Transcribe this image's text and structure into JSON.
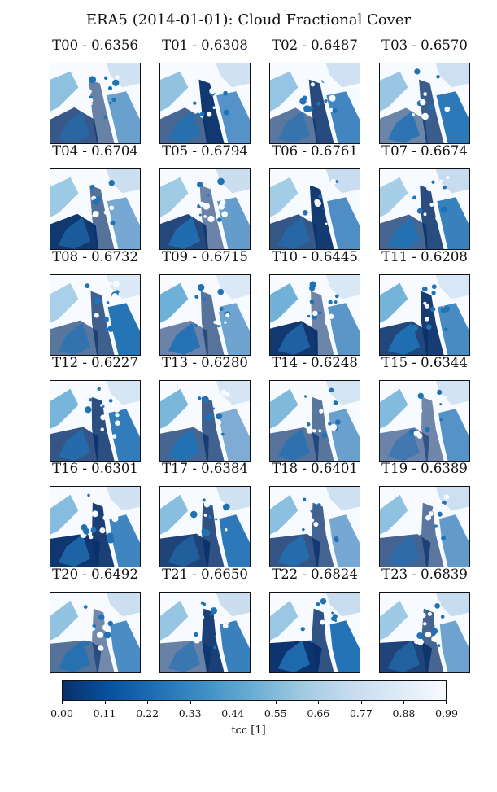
{
  "chart_data": {
    "type": "heatmap",
    "title": "ERA5 (2014-01-01): Cloud Fractional Cover",
    "colormap": "Blues_r",
    "panels": [
      {
        "label": "T00 - 0.6356",
        "hour": "T00",
        "mean": 0.6356
      },
      {
        "label": "T01 - 0.6308",
        "hour": "T01",
        "mean": 0.6308
      },
      {
        "label": "T02 - 0.6487",
        "hour": "T02",
        "mean": 0.6487
      },
      {
        "label": "T03 - 0.6570",
        "hour": "T03",
        "mean": 0.657
      },
      {
        "label": "T04 - 0.6704",
        "hour": "T04",
        "mean": 0.6704
      },
      {
        "label": "T05 - 0.6794",
        "hour": "T05",
        "mean": 0.6794
      },
      {
        "label": "T06 - 0.6761",
        "hour": "T06",
        "mean": 0.6761
      },
      {
        "label": "T07 - 0.6674",
        "hour": "T07",
        "mean": 0.6674
      },
      {
        "label": "T08 - 0.6732",
        "hour": "T08",
        "mean": 0.6732
      },
      {
        "label": "T09 - 0.6715",
        "hour": "T09",
        "mean": 0.6715
      },
      {
        "label": "T10 - 0.6445",
        "hour": "T10",
        "mean": 0.6445
      },
      {
        "label": "T11 - 0.6208",
        "hour": "T11",
        "mean": 0.6208
      },
      {
        "label": "T12 - 0.6227",
        "hour": "T12",
        "mean": 0.6227
      },
      {
        "label": "T13 - 0.6280",
        "hour": "T13",
        "mean": 0.628
      },
      {
        "label": "T14 - 0.6248",
        "hour": "T14",
        "mean": 0.6248
      },
      {
        "label": "T15 - 0.6344",
        "hour": "T15",
        "mean": 0.6344
      },
      {
        "label": "T16 - 0.6301",
        "hour": "T16",
        "mean": 0.6301
      },
      {
        "label": "T17 - 0.6384",
        "hour": "T17",
        "mean": 0.6384
      },
      {
        "label": "T18 - 0.6401",
        "hour": "T18",
        "mean": 0.6401
      },
      {
        "label": "T19 - 0.6389",
        "hour": "T19",
        "mean": 0.6389
      },
      {
        "label": "T20 - 0.6492",
        "hour": "T20",
        "mean": 0.6492
      },
      {
        "label": "T21 - 0.6650",
        "hour": "T21",
        "mean": 0.665
      },
      {
        "label": "T22 - 0.6824",
        "hour": "T22",
        "mean": 0.6824
      },
      {
        "label": "T23 - 0.6839",
        "hour": "T23",
        "mean": 0.6839
      }
    ],
    "colorbar": {
      "label": "tcc [1]",
      "ticks": [
        "0.00",
        "0.11",
        "0.22",
        "0.33",
        "0.44",
        "0.55",
        "0.66",
        "0.77",
        "0.88",
        "0.99"
      ],
      "range": [
        0.0,
        0.99
      ]
    }
  }
}
